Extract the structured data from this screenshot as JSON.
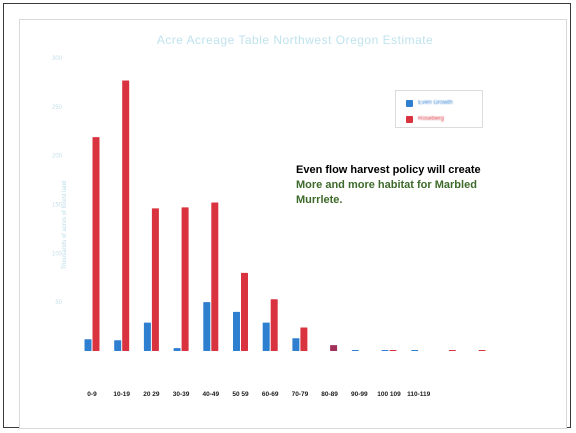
{
  "chart_data": {
    "type": "bar",
    "title": "Acre Acreage Table Northwest Oregon Estimate",
    "xlabel": "",
    "ylabel": "Thousands of acres of forest land",
    "categories": [
      "0-9",
      "10-19",
      "20 29",
      "30-39",
      "40-49",
      "50 59",
      "60-69",
      "70-79",
      "80-89",
      "90-99",
      "100 109",
      "110-119",
      "",
      ""
    ],
    "series": [
      {
        "name": "Even Growth",
        "color": "#2f7fd0",
        "values": [
          12,
          11,
          29,
          3,
          50,
          40,
          29,
          13,
          0,
          1,
          1,
          1,
          0,
          0
        ]
      },
      {
        "name": "Roseberg",
        "color": "#d9333f",
        "values": [
          219,
          277,
          146,
          147,
          152,
          80,
          53,
          24,
          6,
          0,
          1,
          0,
          1,
          1
        ]
      }
    ],
    "ylim": [
      0,
      300
    ],
    "yticks": [
      50,
      100,
      150,
      200,
      250,
      300
    ],
    "grid": false,
    "legend_position": "top-right",
    "annotation": {
      "line1": "Even flow harvest policy will create",
      "line2": "More and more habitat for Marbled",
      "line3": "Murrlete."
    }
  }
}
